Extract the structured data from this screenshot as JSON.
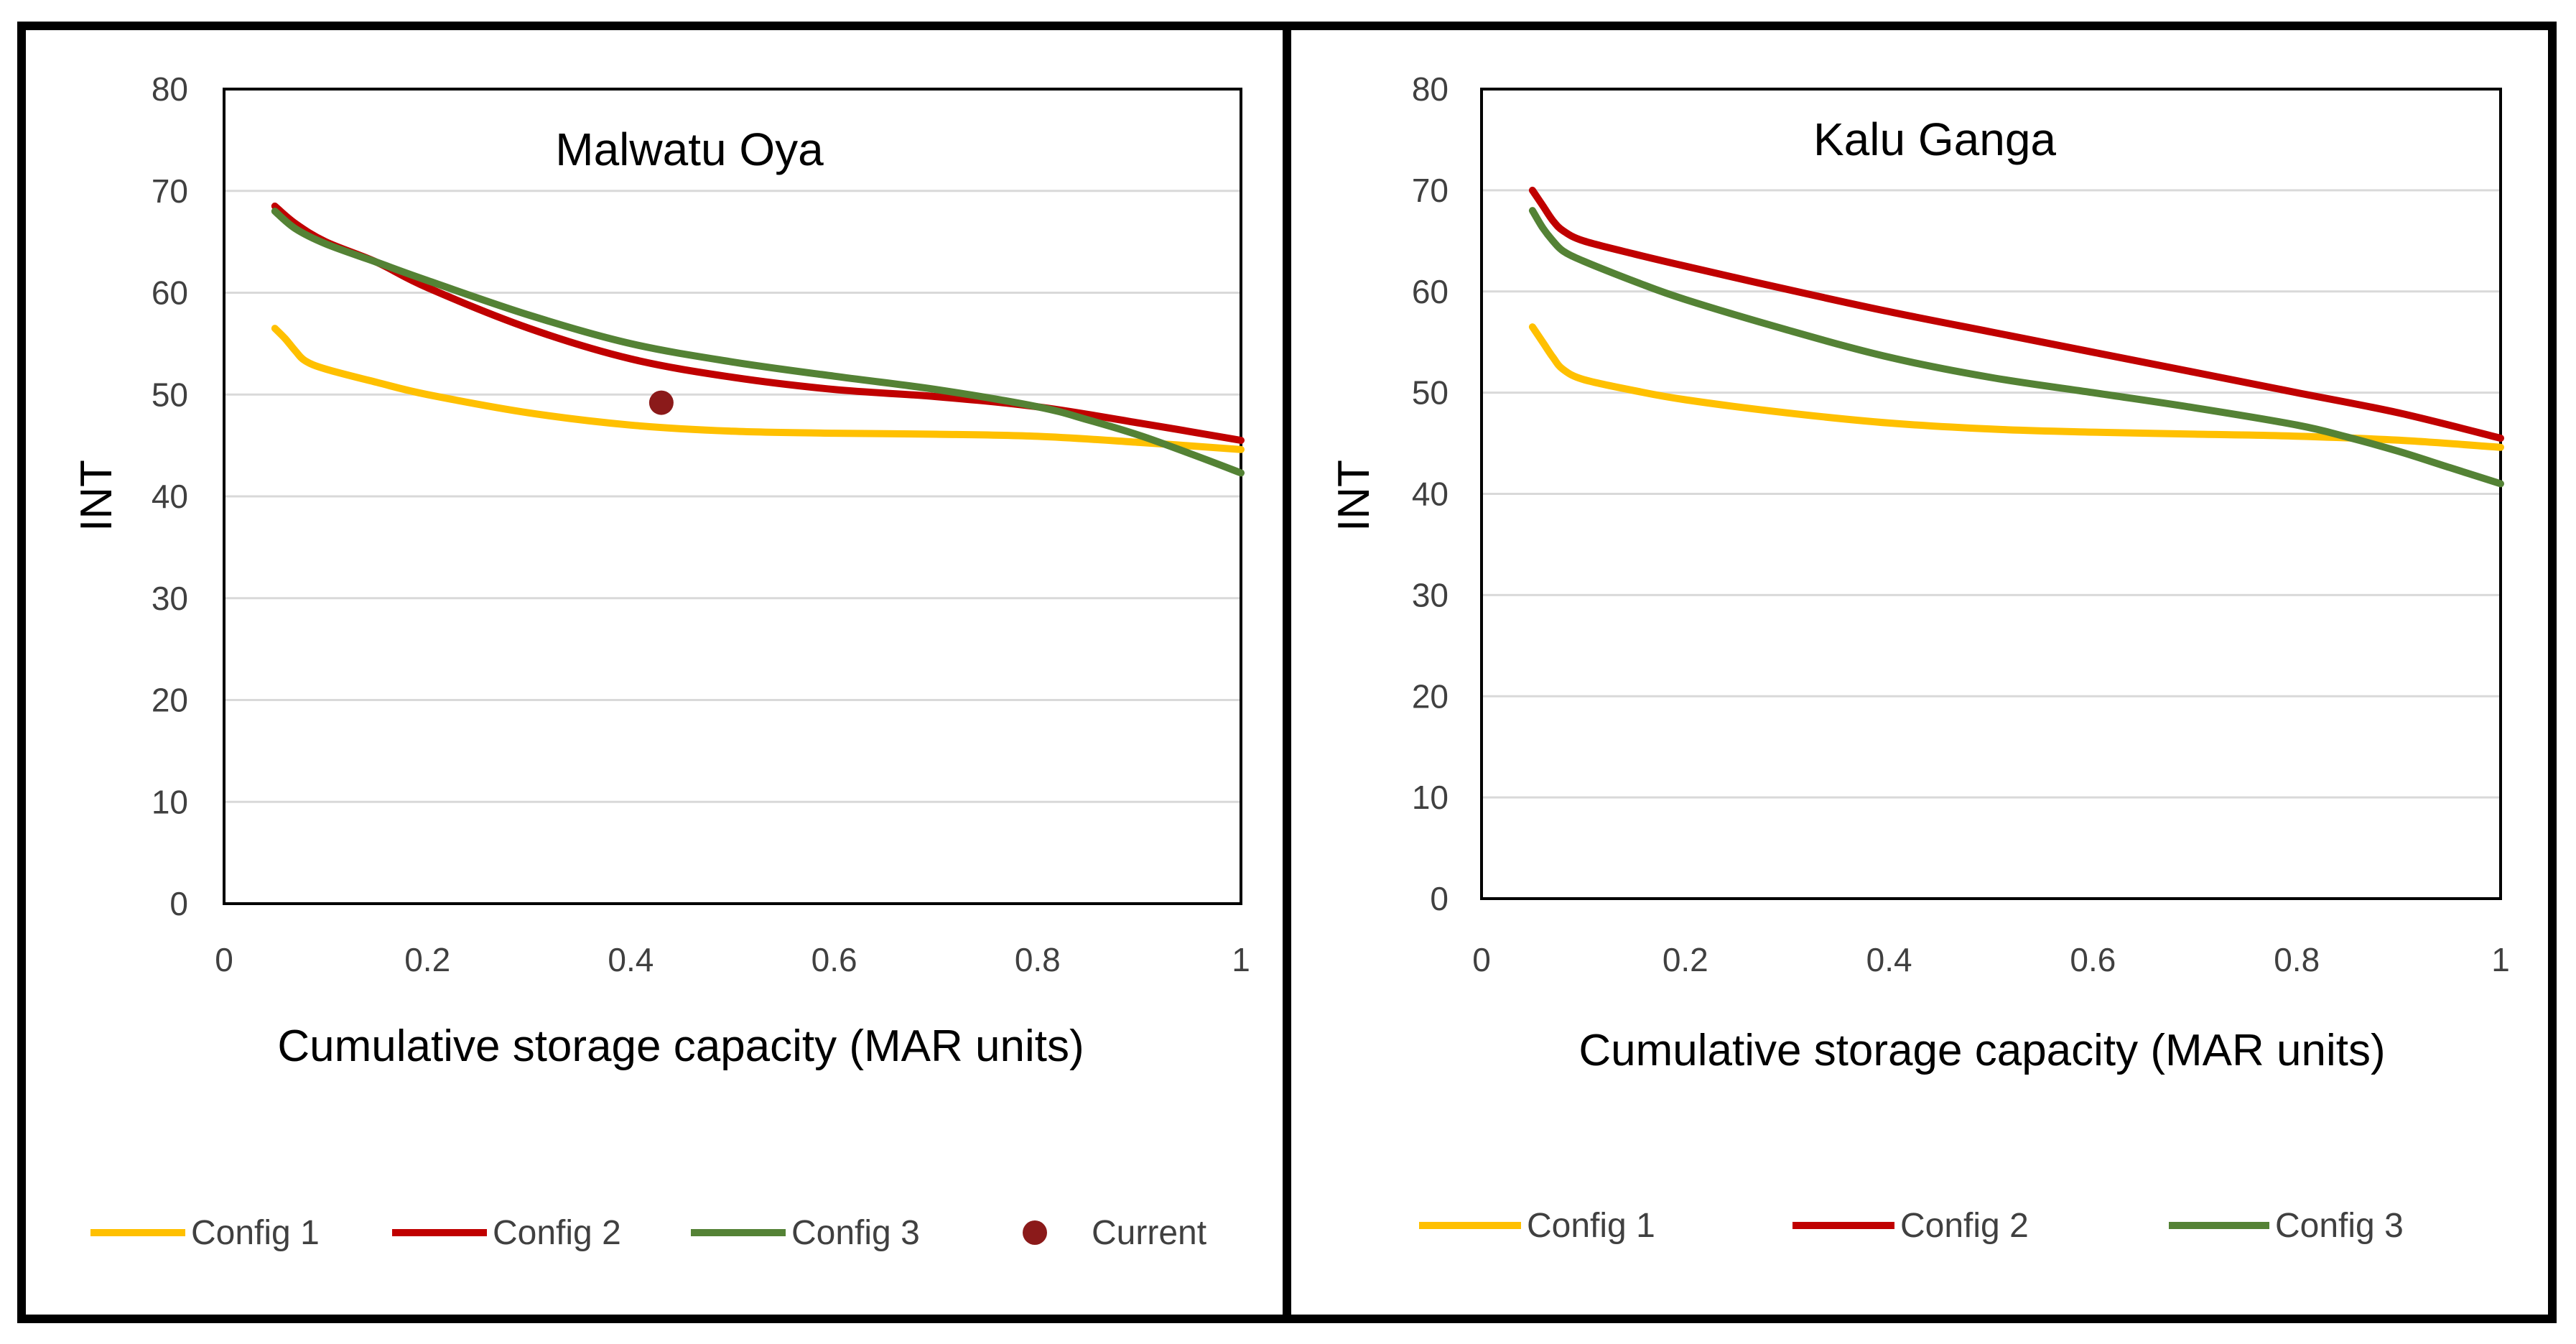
{
  "colors": {
    "config1": "#FFC000",
    "config2": "#C00000",
    "config3": "#548235",
    "current": "#8B1A1A"
  },
  "chart_data": [
    {
      "type": "line",
      "title": "Malwatu Oya",
      "xlabel": "Cumulative storage capacity (MAR units)",
      "ylabel": "INT",
      "xlim": [
        0,
        1
      ],
      "ylim": [
        0,
        80
      ],
      "x_ticks": [
        "0",
        "0.2",
        "0.4",
        "0.6",
        "0.8",
        "1"
      ],
      "y_ticks": [
        "0",
        "10",
        "20",
        "30",
        "40",
        "50",
        "60",
        "70",
        "80"
      ],
      "grid": "horizontal",
      "legend_position": "bottom",
      "series": [
        {
          "name": "Config 1",
          "color": "#FFC000",
          "x": [
            0.05,
            0.06,
            0.07,
            0.08,
            0.1,
            0.15,
            0.2,
            0.3,
            0.4,
            0.5,
            0.6,
            0.7,
            0.8,
            0.9,
            1.0
          ],
          "y": [
            56.5,
            55.5,
            54.3,
            53.3,
            52.5,
            51.2,
            50.0,
            48.2,
            47.0,
            46.4,
            46.2,
            46.1,
            45.9,
            45.3,
            44.6
          ]
        },
        {
          "name": "Config 2",
          "color": "#C00000",
          "x": [
            0.05,
            0.07,
            0.1,
            0.15,
            0.2,
            0.3,
            0.4,
            0.5,
            0.6,
            0.7,
            0.8,
            0.9,
            1.0
          ],
          "y": [
            68.5,
            66.8,
            65.0,
            63.0,
            60.5,
            56.5,
            53.5,
            51.7,
            50.5,
            49.8,
            48.8,
            47.2,
            45.5
          ]
        },
        {
          "name": "Config 3",
          "color": "#548235",
          "x": [
            0.05,
            0.07,
            0.1,
            0.15,
            0.2,
            0.3,
            0.4,
            0.5,
            0.6,
            0.7,
            0.8,
            0.85,
            0.9,
            0.95,
            1.0
          ],
          "y": [
            68.0,
            66.3,
            64.8,
            63.0,
            61.2,
            57.8,
            55.0,
            53.2,
            51.8,
            50.5,
            48.8,
            47.5,
            46.0,
            44.2,
            42.3
          ]
        }
      ],
      "points": [
        {
          "name": "Current",
          "color": "#8B1A1A",
          "x": 0.43,
          "y": 49.2
        }
      ],
      "legend": [
        "Config 1",
        "Config 2",
        "Config 3",
        "Current"
      ]
    },
    {
      "type": "line",
      "title": "Kalu Ganga",
      "xlabel": "Cumulative storage capacity (MAR units)",
      "ylabel": "INT",
      "xlim": [
        0,
        1
      ],
      "ylim": [
        0,
        80
      ],
      "x_ticks": [
        "0",
        "0.2",
        "0.4",
        "0.6",
        "0.8",
        "1"
      ],
      "y_ticks": [
        "0",
        "10",
        "20",
        "30",
        "40",
        "50",
        "60",
        "70",
        "80"
      ],
      "grid": "horizontal",
      "legend_position": "bottom",
      "series": [
        {
          "name": "Config 1",
          "color": "#FFC000",
          "x": [
            0.05,
            0.06,
            0.07,
            0.08,
            0.1,
            0.15,
            0.2,
            0.3,
            0.4,
            0.5,
            0.6,
            0.7,
            0.8,
            0.9,
            1.0
          ],
          "y": [
            56.5,
            55.0,
            53.5,
            52.3,
            51.3,
            50.2,
            49.3,
            48.0,
            47.0,
            46.4,
            46.1,
            45.9,
            45.7,
            45.3,
            44.6
          ]
        },
        {
          "name": "Config 2",
          "color": "#C00000",
          "x": [
            0.05,
            0.06,
            0.07,
            0.08,
            0.1,
            0.15,
            0.2,
            0.3,
            0.4,
            0.5,
            0.6,
            0.7,
            0.8,
            0.9,
            1.0
          ],
          "y": [
            70.0,
            68.5,
            67.0,
            66.0,
            65.0,
            63.7,
            62.5,
            60.2,
            58.0,
            56.0,
            54.0,
            52.0,
            50.0,
            48.0,
            45.5
          ]
        },
        {
          "name": "Config 3",
          "color": "#548235",
          "x": [
            0.05,
            0.06,
            0.07,
            0.08,
            0.1,
            0.15,
            0.2,
            0.3,
            0.4,
            0.5,
            0.6,
            0.7,
            0.8,
            0.85,
            0.9,
            0.95,
            1.0
          ],
          "y": [
            68.0,
            66.3,
            65.0,
            64.0,
            63.0,
            61.0,
            59.2,
            56.2,
            53.5,
            51.5,
            50.0,
            48.5,
            46.8,
            45.6,
            44.2,
            42.6,
            41.0
          ]
        }
      ],
      "legend": [
        "Config 1",
        "Config 2",
        "Config 3"
      ]
    }
  ]
}
